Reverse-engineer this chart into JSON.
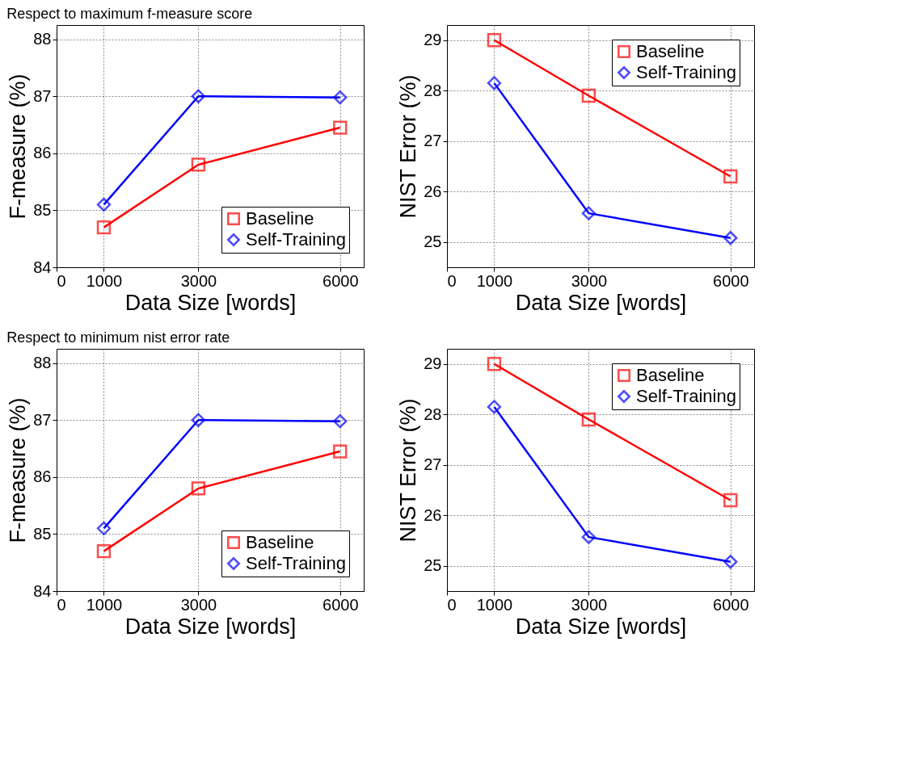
{
  "chart_data": [
    {
      "type": "line",
      "title": "Respect to maximum f-measure score",
      "xlabel": "Data Size [words]",
      "ylabel": "F-measure (%)",
      "x": [
        1000,
        3000,
        6000
      ],
      "xlim": [
        0,
        6500
      ],
      "xticks": [
        0,
        1000,
        3000,
        6000
      ],
      "ylim": [
        84,
        88.25
      ],
      "yticks": [
        84,
        85,
        86,
        87,
        88
      ],
      "grid": true,
      "legend": "bottom right",
      "series": [
        {
          "name": "Baseline",
          "color": "#ff0000",
          "marker": "square",
          "values": [
            84.7,
            85.8,
            86.45
          ]
        },
        {
          "name": "Self-Training",
          "color": "#0000ff",
          "marker": "diamond",
          "values": [
            85.1,
            87.0,
            86.98
          ]
        }
      ]
    },
    {
      "type": "line",
      "xlabel": "Data Size [words]",
      "ylabel": "NIST Error (%)",
      "x": [
        1000,
        3000,
        6000
      ],
      "xlim": [
        0,
        6500
      ],
      "xticks": [
        0,
        1000,
        3000,
        6000
      ],
      "ylim": [
        24.5,
        29.3
      ],
      "yticks": [
        25,
        26,
        27,
        28,
        29
      ],
      "grid": true,
      "legend": "top right",
      "series": [
        {
          "name": "Baseline",
          "color": "#ff0000",
          "marker": "square",
          "values": [
            29.0,
            27.9,
            26.3
          ]
        },
        {
          "name": "Self-Training",
          "color": "#0000ff",
          "marker": "diamond",
          "values": [
            28.15,
            25.57,
            25.08
          ]
        }
      ]
    },
    {
      "type": "line",
      "title": "Respect to minimum nist error rate",
      "xlabel": "Data Size [words]",
      "ylabel": "F-measure (%)",
      "x": [
        1000,
        3000,
        6000
      ],
      "xlim": [
        0,
        6500
      ],
      "xticks": [
        0,
        1000,
        3000,
        6000
      ],
      "ylim": [
        84,
        88.25
      ],
      "yticks": [
        84,
        85,
        86,
        87,
        88
      ],
      "grid": true,
      "legend": "bottom right",
      "series": [
        {
          "name": "Baseline",
          "color": "#ff0000",
          "marker": "square",
          "values": [
            84.7,
            85.8,
            86.45
          ]
        },
        {
          "name": "Self-Training",
          "color": "#0000ff",
          "marker": "diamond",
          "values": [
            85.1,
            87.0,
            86.98
          ]
        }
      ]
    },
    {
      "type": "line",
      "xlabel": "Data Size [words]",
      "ylabel": "NIST Error (%)",
      "x": [
        1000,
        3000,
        6000
      ],
      "xlim": [
        0,
        6500
      ],
      "xticks": [
        0,
        1000,
        3000,
        6000
      ],
      "ylim": [
        24.5,
        29.3
      ],
      "yticks": [
        25,
        26,
        27,
        28,
        29
      ],
      "grid": true,
      "legend": "top right",
      "series": [
        {
          "name": "Baseline",
          "color": "#ff0000",
          "marker": "square",
          "values": [
            29.0,
            27.9,
            26.3
          ]
        },
        {
          "name": "Self-Training",
          "color": "#0000ff",
          "marker": "diamond",
          "values": [
            28.15,
            25.57,
            25.08
          ]
        }
      ]
    }
  ]
}
